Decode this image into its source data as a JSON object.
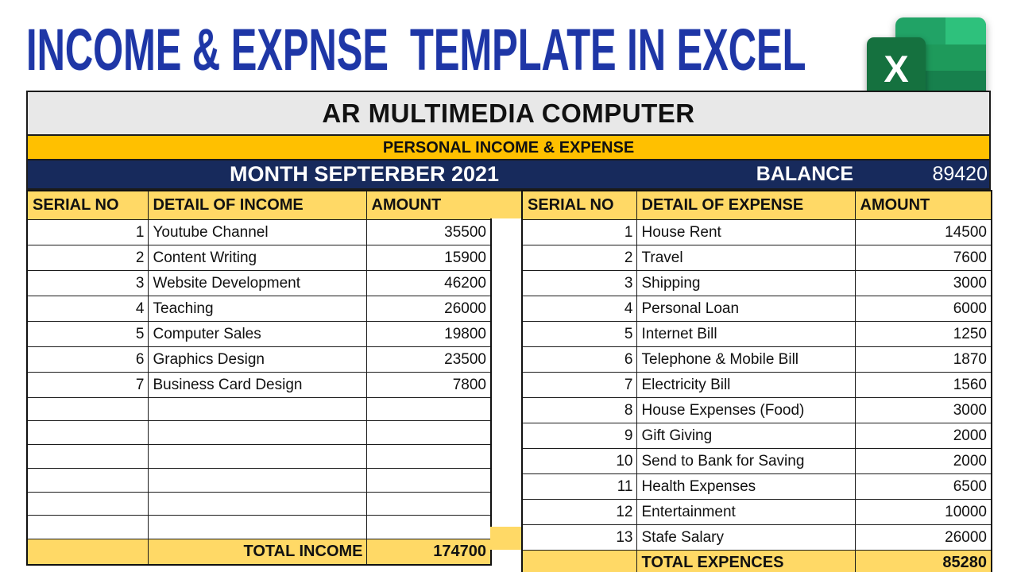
{
  "page": {
    "title": "INCOME & EXPNSE  TEMPLATE IN EXCEL"
  },
  "logo": {
    "letter": "X"
  },
  "header": {
    "company": "AR MULTIMEDIA COMPUTER",
    "subtitle": "PERSONAL INCOME & EXPENSE",
    "month_label": "MONTH SEPTERBER 2021",
    "balance_label": "BALANCE",
    "balance_value": "89420"
  },
  "income": {
    "columns": [
      "SERIAL NO",
      "DETAIL OF INCOME",
      "AMOUNT"
    ],
    "rows": [
      {
        "serial": "1",
        "detail": "Youtube Channel",
        "amount": "35500"
      },
      {
        "serial": "2",
        "detail": "Content Writing",
        "amount": "15900"
      },
      {
        "serial": "3",
        "detail": "Website Development",
        "amount": "46200"
      },
      {
        "serial": "4",
        "detail": "Teaching",
        "amount": "26000"
      },
      {
        "serial": "5",
        "detail": "Computer Sales",
        "amount": "19800"
      },
      {
        "serial": "6",
        "detail": "Graphics Design",
        "amount": "23500"
      },
      {
        "serial": "7",
        "detail": "Business Card Design",
        "amount": "7800"
      },
      {
        "serial": "",
        "detail": "",
        "amount": ""
      },
      {
        "serial": "",
        "detail": "",
        "amount": ""
      },
      {
        "serial": "",
        "detail": "",
        "amount": ""
      },
      {
        "serial": "",
        "detail": "",
        "amount": ""
      },
      {
        "serial": "",
        "detail": "",
        "amount": ""
      },
      {
        "serial": "",
        "detail": "",
        "amount": ""
      }
    ],
    "total_label": "TOTAL INCOME",
    "total_value": "174700"
  },
  "expense": {
    "columns": [
      "SERIAL NO",
      "DETAIL OF EXPENSE",
      "AMOUNT"
    ],
    "rows": [
      {
        "serial": "1",
        "detail": "House Rent",
        "amount": "14500"
      },
      {
        "serial": "2",
        "detail": "Travel",
        "amount": "7600"
      },
      {
        "serial": "3",
        "detail": "Shipping",
        "amount": "3000"
      },
      {
        "serial": "4",
        "detail": "Personal Loan",
        "amount": "6000"
      },
      {
        "serial": "5",
        "detail": "Internet Bill",
        "amount": "1250"
      },
      {
        "serial": "6",
        "detail": "Telephone & Mobile Bill",
        "amount": "1870"
      },
      {
        "serial": "7",
        "detail": "Electricity Bill",
        "amount": "1560"
      },
      {
        "serial": "8",
        "detail": "House Expenses (Food)",
        "amount": "3000"
      },
      {
        "serial": "9",
        "detail": "Gift Giving",
        "amount": "2000"
      },
      {
        "serial": "10",
        "detail": "Send to Bank for Saving",
        "amount": "2000"
      },
      {
        "serial": "11",
        "detail": "Health Expenses",
        "amount": "6500"
      },
      {
        "serial": "12",
        "detail": "Entertainment",
        "amount": "10000"
      },
      {
        "serial": "13",
        "detail": "Stafe Salary",
        "amount": "26000"
      }
    ],
    "total_label": "TOTAL EXPENCES",
    "total_value": "85280"
  },
  "colors": {
    "title_blue": "#1E36A6",
    "navy": "#172A5C",
    "gold": "#FFC000",
    "header_yellow": "#FFD966",
    "excel_green": "#15713F"
  }
}
